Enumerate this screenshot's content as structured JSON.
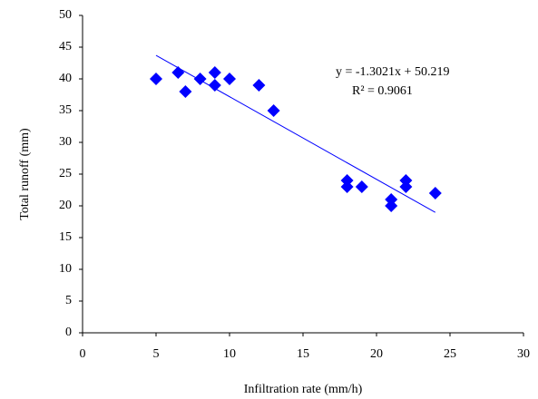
{
  "chart_data": {
    "type": "scatter",
    "x_label": "Infiltration rate (mm/h)",
    "y_label": "Total runoff (mm)",
    "series": [
      {
        "color": "#0000ff",
        "x": [
          5,
          6.5,
          7,
          8,
          9,
          9,
          10,
          12,
          13,
          18,
          18,
          19,
          21,
          21,
          22,
          22,
          24
        ],
        "values": [
          40,
          41,
          38,
          40,
          41,
          39,
          40,
          39,
          35,
          24,
          23,
          23,
          21,
          20,
          24,
          23,
          22
        ]
      }
    ],
    "trendline": {
      "slope": -1.3021,
      "intercept": 50.219,
      "equation": "y = -1.3021x + 50.219",
      "r2": "R² = 0.9061",
      "color": "#0000ff"
    },
    "xlim": [
      0,
      30
    ],
    "xticks": [
      0,
      5,
      10,
      15,
      20,
      25,
      30
    ],
    "ylim": [
      0,
      50
    ],
    "yticks": [
      0,
      5,
      10,
      15,
      20,
      25,
      30,
      35,
      40,
      45,
      50
    ],
    "grid": false
  }
}
